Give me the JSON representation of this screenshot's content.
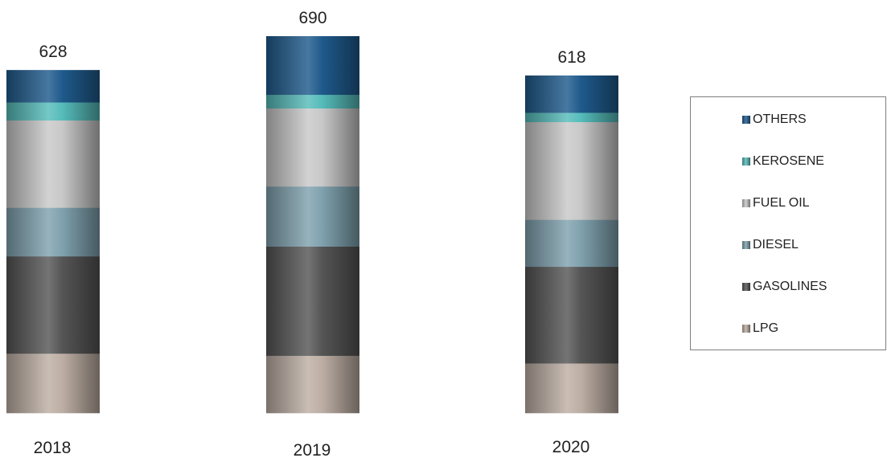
{
  "chart_data": {
    "type": "bar",
    "stacked": true,
    "categories": [
      "2018",
      "2019",
      "2020"
    ],
    "totals": [
      628,
      690,
      618
    ],
    "ylim": [
      0,
      690
    ],
    "legend_position": "right",
    "series": [
      {
        "name": "LPG",
        "values": [
          109,
          105,
          91
        ],
        "color": "#bdaea4"
      },
      {
        "name": "GASOLINES",
        "values": [
          178,
          200,
          177
        ],
        "color": "#555555"
      },
      {
        "name": "DIESEL",
        "values": [
          89,
          110,
          86
        ],
        "color": "#7fa1ae"
      },
      {
        "name": "FUEL OIL",
        "values": [
          160,
          143,
          179
        ],
        "color": "#c8c8c8"
      },
      {
        "name": "KEROSENE",
        "values": [
          33,
          25,
          17
        ],
        "color": "#55bcba"
      },
      {
        "name": "OTHERS",
        "values": [
          59,
          107,
          68
        ],
        "color": "#1f5a8c"
      }
    ]
  },
  "legend": {
    "items": [
      "OTHERS",
      "KEROSENE",
      "FUEL OIL",
      "DIESEL",
      "GASOLINES",
      "LPG"
    ]
  }
}
